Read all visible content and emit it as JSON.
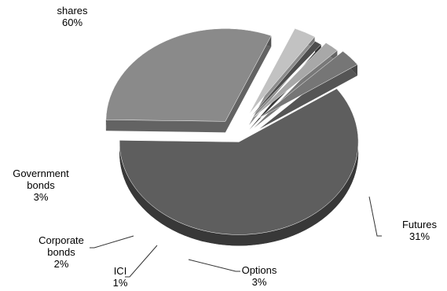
{
  "chart_data": {
    "type": "pie",
    "style": "3d-exploded",
    "slices": [
      {
        "name": "shares",
        "lines": [
          "shares"
        ],
        "value": 60,
        "value_label": "60%",
        "color": "#5e5e5e"
      },
      {
        "name": "Futures",
        "lines": [
          "Futures"
        ],
        "value": 31,
        "value_label": "31%",
        "color": "#8a8a8a"
      },
      {
        "name": "Options",
        "lines": [
          "Options"
        ],
        "value": 3,
        "value_label": "3%",
        "color": "#c2c2c2"
      },
      {
        "name": "ICI",
        "lines": [
          "ICI"
        ],
        "value": 1,
        "value_label": "1%",
        "color": "#4e4e4e"
      },
      {
        "name": "Corporate bonds",
        "lines": [
          "Corporate",
          "bonds"
        ],
        "value": 2,
        "value_label": "2%",
        "color": "#a8a8a8"
      },
      {
        "name": "Government bonds",
        "lines": [
          "Government",
          "bonds"
        ],
        "value": 3,
        "value_label": "3%",
        "color": "#767676"
      }
    ]
  }
}
